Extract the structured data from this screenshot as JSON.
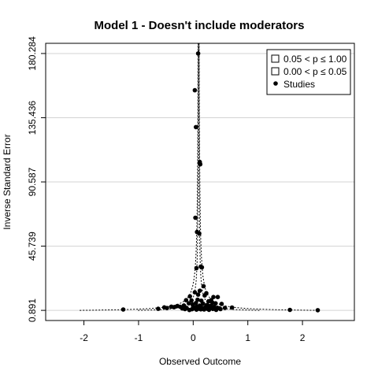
{
  "chart_data": {
    "type": "scatter",
    "subtype": "contour-enhanced funnel plot",
    "title": "Model 1 - Doesn't include moderators",
    "xlabel": "Observed Outcome",
    "ylabel": "Inverse Standard Error",
    "xlim": [
      -2.7,
      2.95
    ],
    "ylim": [
      -6.2,
      187.4
    ],
    "x_ticks": [
      -2,
      -1,
      0,
      1,
      2
    ],
    "x_tick_labels": [
      "-2",
      "-1",
      "0",
      "1",
      "2"
    ],
    "y_ticks": [
      0.891,
      45.739,
      90.587,
      135.436,
      180.284
    ],
    "y_tick_labels": [
      "0.891",
      "45.739",
      "90.587",
      "135.436",
      "180.284"
    ],
    "grid": "horizontal",
    "legend_position": "top-right",
    "legend": [
      {
        "label": "0.05 < p ≤ 1.00",
        "symbol": "square-white"
      },
      {
        "label": "0.00 < p ≤ 0.05",
        "symbol": "square-white"
      },
      {
        "label": "Studies",
        "symbol": "dot"
      }
    ],
    "colors": {
      "region": "#ffffff",
      "grid": "#d3d3d3",
      "points": "#000000",
      "contour": "#000000"
    },
    "center_estimate": 0.1,
    "series": [
      {
        "name": "Studies",
        "points": [
          [
            0.09,
            180.3
          ],
          [
            0.03,
            154.6
          ],
          [
            0.05,
            128.9
          ],
          [
            0.12,
            104.5
          ],
          [
            0.13,
            102.9
          ],
          [
            0.04,
            65.6
          ],
          [
            0.07,
            55.6
          ],
          [
            0.11,
            54.5
          ],
          [
            0.14,
            31.5
          ],
          [
            0.06,
            30.4
          ],
          [
            0.16,
            30.9
          ],
          [
            0.19,
            17.8
          ],
          [
            0.12,
            14.6
          ],
          [
            0.03,
            13.5
          ],
          [
            0.24,
            12.9
          ],
          [
            0.37,
            10.2
          ],
          [
            0.45,
            10.2
          ],
          [
            0.33,
            8.0
          ],
          [
            -0.03,
            7.8
          ],
          [
            -0.06,
            10.7
          ],
          [
            0.09,
            11.9
          ],
          [
            0.21,
            11.3
          ],
          [
            -0.13,
            8.0
          ],
          [
            0.08,
            8.3
          ],
          [
            0.15,
            7.6
          ],
          [
            0.28,
            7.2
          ],
          [
            0.35,
            6.2
          ],
          [
            0.41,
            5.8
          ],
          [
            0.52,
            5.4
          ],
          [
            -0.08,
            5.8
          ],
          [
            -0.01,
            5.0
          ],
          [
            0.05,
            6.0
          ],
          [
            0.18,
            5.6
          ],
          [
            0.25,
            4.6
          ],
          [
            0.32,
            4.0
          ],
          [
            -0.17,
            4.3
          ],
          [
            -0.24,
            3.4
          ],
          [
            -0.29,
            3.9
          ],
          [
            -0.35,
            3.1
          ],
          [
            -0.4,
            3.5
          ],
          [
            0.0,
            3.8
          ],
          [
            0.07,
            3.5
          ],
          [
            0.12,
            4.2
          ],
          [
            0.22,
            3.0
          ],
          [
            0.3,
            2.8
          ],
          [
            0.38,
            3.4
          ],
          [
            0.44,
            2.7
          ],
          [
            0.48,
            2.4
          ],
          [
            -0.12,
            2.6
          ],
          [
            -0.2,
            2.2
          ],
          [
            -0.48,
            2.5
          ],
          [
            -0.53,
            3.0
          ],
          [
            0.02,
            2.4
          ],
          [
            0.1,
            2.1
          ],
          [
            0.16,
            2.7
          ],
          [
            0.26,
            2.0
          ],
          [
            0.36,
            1.9
          ],
          [
            0.5,
            1.8
          ],
          [
            0.58,
            2.6
          ],
          [
            0.71,
            2.9
          ],
          [
            -0.02,
            1.7
          ],
          [
            0.06,
            1.4
          ],
          [
            0.14,
            1.6
          ],
          [
            0.2,
            1.5
          ],
          [
            0.29,
            1.3
          ],
          [
            0.42,
            1.2
          ],
          [
            -0.07,
            1.1
          ],
          [
            -0.15,
            1.8
          ],
          [
            -0.64,
            2.0
          ],
          [
            -1.28,
            1.5
          ],
          [
            1.77,
            1.2
          ],
          [
            2.28,
            1.0
          ]
        ]
      }
    ]
  }
}
